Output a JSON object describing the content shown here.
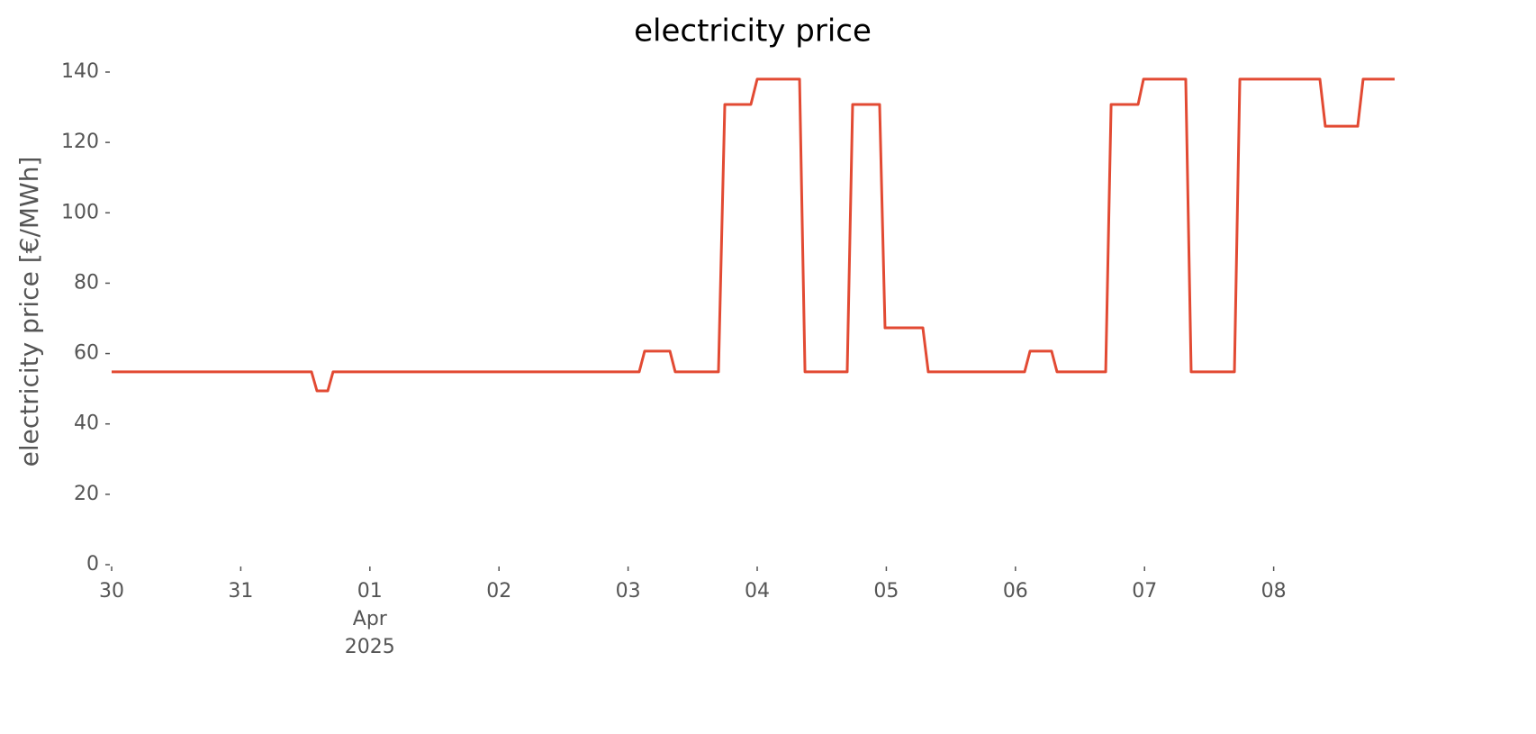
{
  "chart_data": {
    "type": "line",
    "title": "electricity price",
    "ylabel": "electricity price [€/MWh]",
    "x": [
      0,
      1.548,
      1.59,
      1.674,
      1.715,
      4.086,
      4.128,
      4.324,
      4.365,
      4.7,
      4.749,
      4.951,
      5.0,
      5.328,
      5.37,
      5.697,
      5.739,
      5.948,
      5.99,
      6.283,
      6.325,
      7.071,
      7.113,
      7.28,
      7.322,
      7.699,
      7.741,
      7.95,
      7.992,
      8.319,
      8.361,
      8.696,
      8.738,
      9.358,
      9.4,
      9.651,
      9.693,
      9.937
    ],
    "series": [
      {
        "color": "#e24a33",
        "values": [
          54.8,
          54.8,
          49.4,
          49.4,
          54.8,
          54.8,
          60.7,
          60.7,
          54.8,
          54.8,
          130.8,
          130.8,
          138.0,
          138.0,
          54.8,
          54.8,
          130.8,
          130.8,
          67.3,
          67.3,
          54.8,
          54.8,
          60.7,
          60.7,
          54.8,
          54.8,
          130.8,
          130.8,
          138.0,
          138.0,
          54.8,
          54.8,
          138.0,
          138.0,
          124.6,
          124.6,
          138.0,
          138.0
        ]
      }
    ],
    "xlim": [
      0,
      9.937
    ],
    "xticks": [
      {
        "value": 0,
        "label": "30"
      },
      {
        "value": 1,
        "label": "31"
      },
      {
        "value": 2,
        "label": "01\nApr\n2025"
      },
      {
        "value": 3,
        "label": "02"
      },
      {
        "value": 4,
        "label": "03"
      },
      {
        "value": 5,
        "label": "04"
      },
      {
        "value": 6,
        "label": "05"
      },
      {
        "value": 7,
        "label": "06"
      },
      {
        "value": 8,
        "label": "07"
      },
      {
        "value": 9,
        "label": "08"
      }
    ],
    "ylim": [
      0,
      140
    ],
    "yticks": [
      0,
      20,
      40,
      60,
      80,
      100,
      120,
      140
    ]
  }
}
